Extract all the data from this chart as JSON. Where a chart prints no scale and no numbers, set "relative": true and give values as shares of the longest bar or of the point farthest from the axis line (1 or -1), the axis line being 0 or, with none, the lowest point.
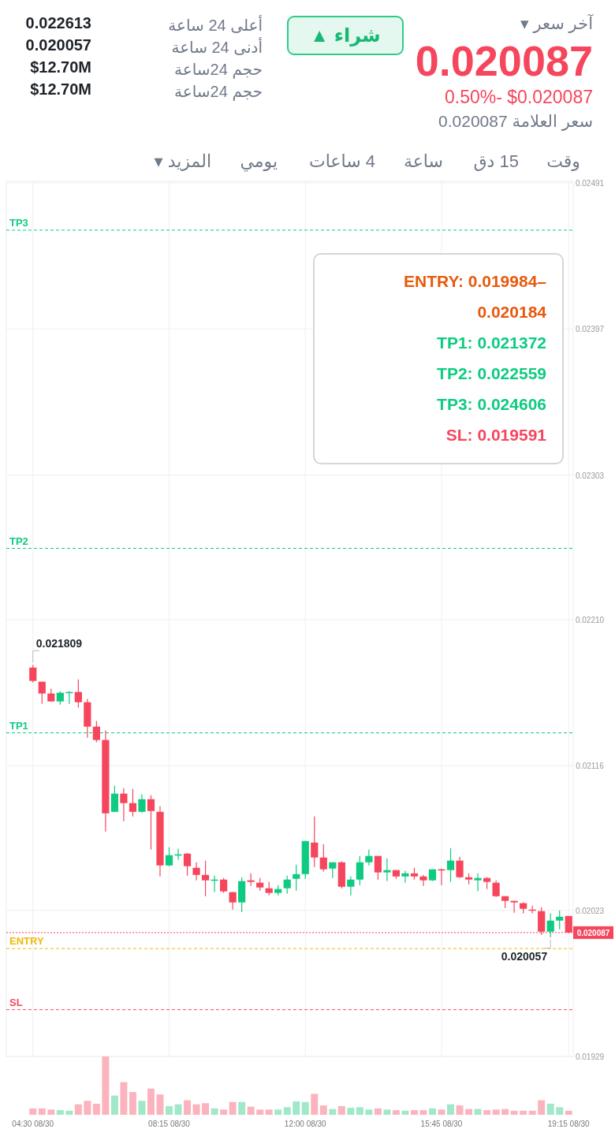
{
  "chart_data": [
    {
      "type": "other",
      "title": "0.020087",
      "annotations": [
        "آخر سعر ▾",
        "$0.020087  -0.50%",
        "سعر العلامة 0.020087",
        "شراء ▲",
        "أعلى 24 ساعة",
        "0.022613",
        "أدنى 24 ساعة",
        "0.020057",
        "حجم 24ساعة",
        "$12.70M",
        "حجم 24ساعة",
        "$12.70M",
        "وقت",
        "15 دق",
        "ساعة",
        "4 ساعات",
        "يومي",
        "المزيد ▾"
      ]
    },
    {
      "type": "candlestick",
      "categories": [
        "04:30 08/30",
        null,
        null,
        null,
        null,
        null,
        null,
        null,
        null,
        null,
        null,
        null,
        null,
        null,
        null,
        "08:15 08/30",
        null,
        null,
        null,
        null,
        null,
        null,
        null,
        null,
        null,
        null,
        null,
        null,
        null,
        null,
        "12:00 08/30",
        null,
        null,
        null,
        null,
        null,
        null,
        null,
        null,
        null,
        null,
        null,
        null,
        null,
        null,
        "15:45 08/30",
        null,
        null,
        null,
        null,
        null,
        null,
        null,
        null,
        null,
        null,
        null,
        null,
        null,
        "19:15 08/30"
      ],
      "ohlc": [
        [
          0.021792,
          0.021809,
          0.021696,
          0.021706
        ],
        [
          0.021701,
          0.021701,
          0.021559,
          0.021625
        ],
        [
          0.021625,
          0.021656,
          0.021574,
          0.021574
        ],
        [
          0.021574,
          0.02164,
          0.021554,
          0.02163
        ],
        [
          0.02163,
          0.02164,
          0.021559,
          0.021635
        ],
        [
          0.021635,
          0.021716,
          0.021534,
          0.021569
        ],
        [
          0.021569,
          0.02159,
          0.021341,
          0.021412
        ],
        [
          0.021412,
          0.021448,
          0.021311,
          0.021326
        ],
        [
          0.021326,
          0.021387,
          0.020737,
          0.020854
        ],
        [
          0.020864,
          0.021032,
          0.020864,
          0.020981
        ],
        [
          0.020981,
          0.021016,
          0.020803,
          0.02092
        ],
        [
          0.02092,
          0.021011,
          0.020834,
          0.020864
        ],
        [
          0.020864,
          0.020976,
          0.020859,
          0.020945
        ],
        [
          0.020945,
          0.020971,
          0.020621,
          0.020869
        ],
        [
          0.020864,
          0.0209,
          0.020448,
          0.020519
        ],
        [
          0.020519,
          0.020636,
          0.020514,
          0.020585
        ],
        [
          0.020585,
          0.020626,
          0.020555,
          0.02059
        ],
        [
          0.020595,
          0.0206,
          0.020453,
          0.020514
        ],
        [
          0.020504,
          0.020539,
          0.020423,
          0.020458
        ],
        [
          0.020458,
          0.02055,
          0.020321,
          0.020423
        ],
        [
          0.020423,
          0.020453,
          0.020347,
          0.020428
        ],
        [
          0.020428,
          0.020438,
          0.020342,
          0.020352
        ],
        [
          0.020347,
          0.020347,
          0.020235,
          0.020281
        ],
        [
          0.020281,
          0.020443,
          0.02022,
          0.020418
        ],
        [
          0.020423,
          0.020468,
          0.020387,
          0.020413
        ],
        [
          0.020408,
          0.020438,
          0.020357,
          0.020377
        ],
        [
          0.020372,
          0.020413,
          0.020326,
          0.020342
        ],
        [
          0.020342,
          0.020392,
          0.020326,
          0.020367
        ],
        [
          0.020372,
          0.020453,
          0.020337,
          0.020428
        ],
        [
          0.020433,
          0.020524,
          0.020357,
          0.020463
        ],
        [
          0.020463,
          0.020676,
          0.020433,
          0.020676
        ],
        [
          0.020666,
          0.020834,
          0.020509,
          0.02057
        ],
        [
          0.02057,
          0.020656,
          0.020479,
          0.020494
        ],
        [
          0.020499,
          0.020539,
          0.020438,
          0.020539
        ],
        [
          0.020539,
          0.020545,
          0.020372,
          0.020382
        ],
        [
          0.020382,
          0.020448,
          0.020326,
          0.020428
        ],
        [
          0.020428,
          0.02058,
          0.020392,
          0.020539
        ],
        [
          0.020539,
          0.020621,
          0.020519,
          0.02058
        ],
        [
          0.02058,
          0.02058,
          0.020428,
          0.020474
        ],
        [
          0.020474,
          0.020565,
          0.020418,
          0.020489
        ],
        [
          0.020489,
          0.020489,
          0.020433,
          0.020448
        ],
        [
          0.020448,
          0.020484,
          0.020408,
          0.020468
        ],
        [
          0.020468,
          0.020504,
          0.020428,
          0.020448
        ],
        [
          0.020448,
          0.020458,
          0.020387,
          0.020423
        ],
        [
          0.020423,
          0.020494,
          0.020418,
          0.020494
        ],
        [
          0.020494,
          0.020499,
          0.020392,
          0.020489
        ],
        [
          0.020489,
          0.020631,
          0.020413,
          0.02055
        ],
        [
          0.02055,
          0.020575,
          0.020438,
          0.020443
        ],
        [
          0.020443,
          0.020468,
          0.020397,
          0.020428
        ],
        [
          0.020423,
          0.020468,
          0.020352,
          0.020438
        ],
        [
          0.020438,
          0.020443,
          0.020367,
          0.020413
        ],
        [
          0.020408,
          0.020423,
          0.020316,
          0.020321
        ],
        [
          0.020321,
          0.020321,
          0.020245,
          0.020291
        ],
        [
          0.020291,
          0.020291,
          0.020215,
          0.020281
        ],
        [
          0.020276,
          0.020281,
          0.02021,
          0.02024
        ],
        [
          0.020235,
          0.02026,
          0.02021,
          0.02023
        ],
        [
          0.020225,
          0.02025,
          0.020073,
          0.020093
        ],
        [
          0.020093,
          0.02021,
          0.020057,
          0.020164
        ],
        [
          0.020164,
          0.02023,
          0.020108,
          0.020189
        ],
        [
          0.020194,
          0.020194,
          0.020083,
          0.020087
        ]
      ],
      "colors": [
        "#f6465d",
        "#f6465d",
        "#f6465d",
        "#0ecb81",
        "#0ecb81",
        "#f6465d",
        "#f6465d",
        "#f6465d",
        "#f6465d",
        "#0ecb81",
        "#f6465d",
        "#f6465d",
        "#0ecb81",
        "#f6465d",
        "#f6465d",
        "#0ecb81",
        "#0ecb81",
        "#f6465d",
        "#f6465d",
        "#f6465d",
        "#0ecb81",
        "#f6465d",
        "#f6465d",
        "#0ecb81",
        "#f6465d",
        "#f6465d",
        "#f6465d",
        "#0ecb81",
        "#0ecb81",
        "#0ecb81",
        "#0ecb81",
        "#f6465d",
        "#f6465d",
        "#0ecb81",
        "#f6465d",
        "#0ecb81",
        "#0ecb81",
        "#0ecb81",
        "#f6465d",
        "#0ecb81",
        "#f6465d",
        "#0ecb81",
        "#f6465d",
        "#f6465d",
        "#0ecb81",
        "#f6465d",
        "#0ecb81",
        "#f6465d",
        "#f6465d",
        "#0ecb81",
        "#f6465d",
        "#f6465d",
        "#f6465d",
        "#f6465d",
        "#f6465d",
        "#f6465d",
        "#f6465d",
        "#0ecb81",
        "#0ecb81",
        "#f6465d"
      ],
      "ylim": [
        0.01929,
        0.02491
      ],
      "yticks": [
        0.01929,
        0.02023,
        0.02116,
        {
          "value": 0.0221,
          "label": "0.02210"
        },
        0.02303,
        0.02397,
        0.02491
      ],
      "grid": true,
      "tick_labels": "y",
      "ref_lines": [
        {
          "axis": "y",
          "value": 0.019984,
          "label": "ENTRY",
          "color": "#f0b90b",
          "line_style": "dashed"
        },
        {
          "axis": "y",
          "value": 0.021372,
          "label": "TP1",
          "color": "#0ecb81",
          "line_style": "dashed"
        },
        {
          "axis": "y",
          "value": 0.022559,
          "label": "TP2",
          "color": "#0ecb81",
          "line_style": "dashed"
        },
        {
          "axis": "y",
          "value": 0.024606,
          "label": "TP3",
          "color": "#0ecb81",
          "line_style": "dashed"
        },
        {
          "axis": "y",
          "value": 0.019591,
          "label": "SL",
          "color": "#f6465d",
          "line_style": "dashed"
        },
        {
          "axis": "y",
          "value": 0.020087,
          "label": "0.020087",
          "color": "#f6465d",
          "line_style": "dotted"
        }
      ],
      "annotations": [
        "ENTRY: 0.019984–0.020184",
        "TP1: 0.021372",
        "TP2: 0.022559",
        "TP3: 0.024606",
        "SL: 0.019591",
        {
          "text": "0.021809",
          "x": "04:30 08/30",
          "y": 0.021809
        },
        "0.020057"
      ]
    },
    {
      "type": "bar",
      "relative": true,
      "categories": [
        "04:30 08/30",
        null,
        null,
        null,
        null,
        null,
        null,
        null,
        null,
        null,
        null,
        null,
        null,
        null,
        null,
        "08:15 08/30",
        null,
        null,
        null,
        null,
        null,
        null,
        null,
        null,
        null,
        null,
        null,
        null,
        null,
        null,
        "12:00 08/30",
        null,
        null,
        null,
        null,
        null,
        null,
        null,
        null,
        null,
        null,
        null,
        null,
        null,
        null,
        "15:45 08/30",
        null,
        null,
        null,
        null,
        null,
        null,
        null,
        null,
        null,
        null,
        null,
        null,
        null,
        "19:15 08/30"
      ],
      "values": [
        0.11,
        0.11,
        0.09,
        0.08,
        0.07,
        0.18,
        0.24,
        0.19,
        1,
        0.33,
        0.56,
        0.39,
        0.24,
        0.45,
        0.35,
        0.15,
        0.18,
        0.25,
        0.18,
        0.2,
        0.11,
        0.09,
        0.22,
        0.22,
        0.14,
        0.09,
        0.09,
        0.09,
        0.13,
        0.23,
        0.22,
        0.36,
        0.16,
        0.1,
        0.15,
        0.12,
        0.13,
        0.09,
        0.11,
        0.09,
        0.08,
        0.07,
        0.08,
        0.08,
        0.11,
        0.09,
        0.18,
        0.16,
        0.1,
        0.1,
        0.08,
        0.09,
        0.1,
        0.07,
        0.07,
        0.07,
        0.25,
        0.19,
        0.13,
        0.07
      ],
      "colors": [
        "#fbb4be",
        "#fbb4be",
        "#fbb4be",
        "#a0e8c9",
        "#a0e8c9",
        "#fbb4be",
        "#fbb4be",
        "#fbb4be",
        "#fbb4be",
        "#a0e8c9",
        "#fbb4be",
        "#fbb4be",
        "#a0e8c9",
        "#fbb4be",
        "#fbb4be",
        "#a0e8c9",
        "#a0e8c9",
        "#fbb4be",
        "#fbb4be",
        "#fbb4be",
        "#a0e8c9",
        "#fbb4be",
        "#fbb4be",
        "#a0e8c9",
        "#fbb4be",
        "#fbb4be",
        "#fbb4be",
        "#a0e8c9",
        "#a0e8c9",
        "#a0e8c9",
        "#a0e8c9",
        "#fbb4be",
        "#fbb4be",
        "#a0e8c9",
        "#fbb4be",
        "#a0e8c9",
        "#a0e8c9",
        "#a0e8c9",
        "#fbb4be",
        "#a0e8c9",
        "#fbb4be",
        "#a0e8c9",
        "#fbb4be",
        "#fbb4be",
        "#a0e8c9",
        "#fbb4be",
        "#a0e8c9",
        "#fbb4be",
        "#fbb4be",
        "#a0e8c9",
        "#fbb4be",
        "#fbb4be",
        "#fbb4be",
        "#fbb4be",
        "#fbb4be",
        "#fbb4be",
        "#fbb4be",
        "#a0e8c9",
        "#a0e8c9",
        "#fbb4be"
      ],
      "tick_labels": "x"
    }
  ]
}
